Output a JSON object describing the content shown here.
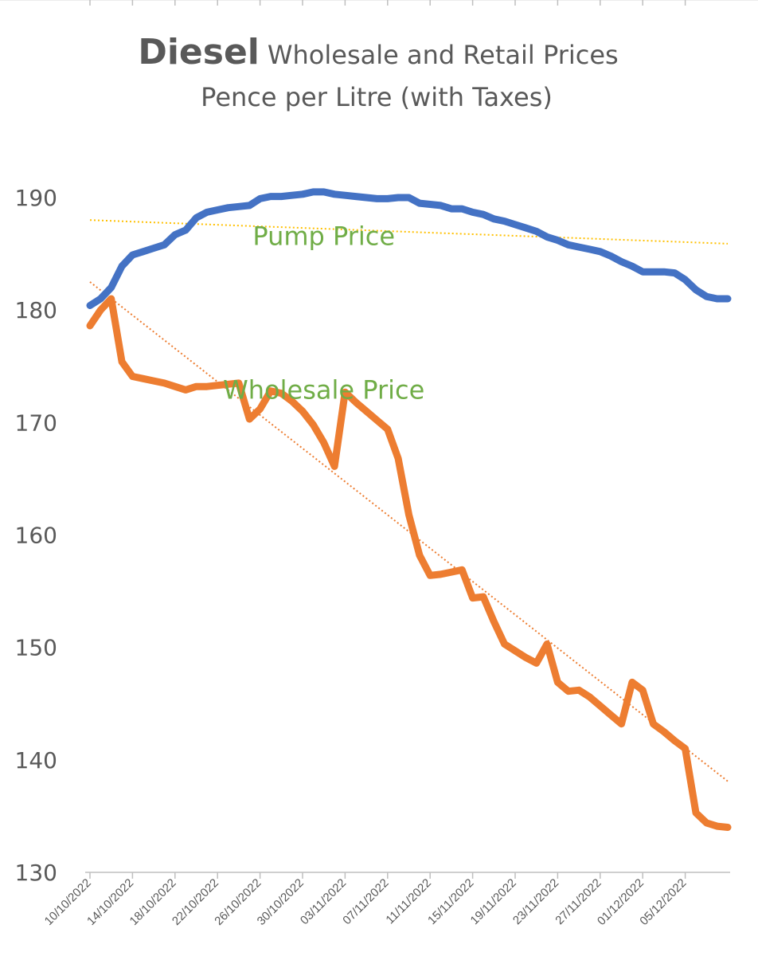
{
  "chart_data": {
    "type": "line",
    "title_bold": "Diesel",
    "title_rest": "Wholesale and Retail Prices",
    "subtitle": "Pence per Litre (with Taxes)",
    "ylim": [
      130,
      190
    ],
    "yticks": [
      130,
      140,
      150,
      160,
      170,
      180,
      190
    ],
    "xlim": [
      "2022-10-10",
      "2022-12-09"
    ],
    "xtick_labels": [
      "10/10/2022",
      "14/10/2022",
      "18/10/2022",
      "22/10/2022",
      "26/10/2022",
      "30/10/2022",
      "03/11/2022",
      "07/11/2022",
      "11/11/2022",
      "15/11/2022",
      "19/11/2022",
      "23/11/2022",
      "27/11/2022",
      "01/12/2022",
      "05/12/2022"
    ],
    "xtick_dates": [
      "2022-10-10",
      "2022-10-14",
      "2022-10-18",
      "2022-10-22",
      "2022-10-26",
      "2022-10-30",
      "2022-11-03",
      "2022-11-07",
      "2022-11-11",
      "2022-11-15",
      "2022-11-19",
      "2022-11-23",
      "2022-11-27",
      "2022-12-01",
      "2022-12-05"
    ],
    "grid": false,
    "legend": "none",
    "annotations": [
      {
        "text": "Pump Price",
        "x": "2022-11-01",
        "y": 185.8,
        "color": "#70ad47"
      },
      {
        "text": "Wholesale Price",
        "x": "2022-11-01",
        "y": 172.1,
        "color": "#70ad47"
      }
    ],
    "series": [
      {
        "color": "#4472c4",
        "x": [
          "2022-10-10",
          "2022-10-11",
          "2022-10-12",
          "2022-10-13",
          "2022-10-14",
          "2022-10-15",
          "2022-10-16",
          "2022-10-17",
          "2022-10-18",
          "2022-10-19",
          "2022-10-20",
          "2022-10-21",
          "2022-10-22",
          "2022-10-23",
          "2022-10-24",
          "2022-10-25",
          "2022-10-26",
          "2022-10-27",
          "2022-10-28",
          "2022-10-29",
          "2022-10-30",
          "2022-10-31",
          "2022-11-01",
          "2022-11-02",
          "2022-11-03",
          "2022-11-04",
          "2022-11-05",
          "2022-11-06",
          "2022-11-07",
          "2022-11-08",
          "2022-11-09",
          "2022-11-10",
          "2022-11-11",
          "2022-11-12",
          "2022-11-13",
          "2022-11-14",
          "2022-11-15",
          "2022-11-16",
          "2022-11-17",
          "2022-11-18",
          "2022-11-19",
          "2022-11-20",
          "2022-11-21",
          "2022-11-22",
          "2022-11-23",
          "2022-11-24",
          "2022-11-25",
          "2022-11-26",
          "2022-11-27",
          "2022-11-28",
          "2022-11-29",
          "2022-11-30",
          "2022-12-01",
          "2022-12-02",
          "2022-12-03",
          "2022-12-04",
          "2022-12-05",
          "2022-12-06",
          "2022-12-07",
          "2022-12-08",
          "2022-12-09"
        ],
        "values": [
          180.4,
          181.0,
          182.0,
          183.9,
          184.9,
          185.2,
          185.5,
          185.8,
          186.7,
          187.1,
          188.2,
          188.7,
          188.9,
          189.1,
          189.2,
          189.3,
          189.9,
          190.1,
          190.1,
          190.2,
          190.3,
          190.5,
          190.5,
          190.3,
          190.2,
          190.1,
          190.0,
          189.9,
          189.9,
          190.0,
          190.0,
          189.5,
          189.4,
          189.3,
          189.0,
          189.0,
          188.7,
          188.5,
          188.1,
          187.9,
          187.6,
          187.3,
          187.0,
          186.5,
          186.2,
          185.8,
          185.6,
          185.4,
          185.2,
          184.8,
          184.3,
          183.9,
          183.4,
          183.4,
          183.4,
          183.3,
          182.7,
          181.8,
          181.2,
          181.0,
          181.0
        ]
      },
      {
        "color": "#ed7d31",
        "x": [
          "2022-10-10",
          "2022-10-11",
          "2022-10-12",
          "2022-10-13",
          "2022-10-14",
          "2022-10-15",
          "2022-10-16",
          "2022-10-17",
          "2022-10-18",
          "2022-10-19",
          "2022-10-20",
          "2022-10-21",
          "2022-10-22",
          "2022-10-23",
          "2022-10-24",
          "2022-10-25",
          "2022-10-26",
          "2022-10-27",
          "2022-10-28",
          "2022-10-29",
          "2022-10-30",
          "2022-10-31",
          "2022-11-01",
          "2022-11-02",
          "2022-11-03",
          "2022-11-04",
          "2022-11-05",
          "2022-11-06",
          "2022-11-07",
          "2022-11-08",
          "2022-11-09",
          "2022-11-10",
          "2022-11-11",
          "2022-11-12",
          "2022-11-13",
          "2022-11-14",
          "2022-11-15",
          "2022-11-16",
          "2022-11-17",
          "2022-11-18",
          "2022-11-19",
          "2022-11-20",
          "2022-11-21",
          "2022-11-22",
          "2022-11-23",
          "2022-11-24",
          "2022-11-25",
          "2022-11-26",
          "2022-11-27",
          "2022-11-28",
          "2022-11-29",
          "2022-11-30",
          "2022-12-01",
          "2022-12-02",
          "2022-12-03",
          "2022-12-04",
          "2022-12-05",
          "2022-12-06",
          "2022-12-07",
          "2022-12-08",
          "2022-12-09"
        ],
        "values": [
          178.6,
          180.0,
          181.0,
          175.4,
          174.1,
          173.9,
          173.7,
          173.5,
          173.2,
          172.9,
          173.2,
          173.2,
          173.3,
          173.4,
          173.5,
          170.3,
          171.2,
          172.8,
          172.6,
          171.9,
          171.0,
          169.8,
          168.2,
          166.1,
          172.7,
          171.8,
          171.0,
          170.2,
          169.4,
          166.8,
          161.8,
          158.2,
          156.4,
          156.5,
          156.7,
          156.9,
          154.4,
          154.5,
          152.3,
          150.3,
          149.7,
          149.1,
          148.6,
          150.3,
          146.9,
          146.1,
          146.2,
          145.6,
          144.8,
          144.0,
          143.2,
          146.9,
          146.2,
          143.2,
          142.5,
          141.7,
          141.0,
          135.3,
          134.4,
          134.1,
          134.0
        ]
      }
    ],
    "trendlines": [
      {
        "color": "#ffc000",
        "style": "dotted",
        "x": [
          "2022-10-10",
          "2022-12-09"
        ],
        "values": [
          188.0,
          185.9
        ]
      },
      {
        "color": "#ed7d31",
        "style": "dotted",
        "x": [
          "2022-10-10",
          "2022-12-09"
        ],
        "values": [
          182.5,
          138.1
        ]
      }
    ]
  }
}
